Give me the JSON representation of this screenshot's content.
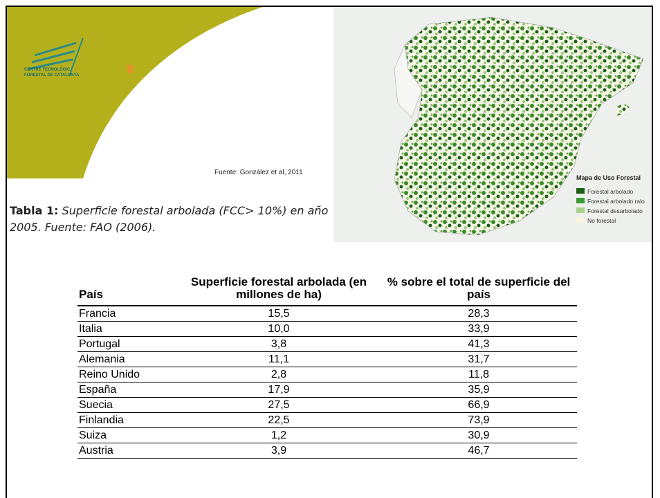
{
  "logo": {
    "line1": "CENTRE TECNOLÒGIC",
    "line2": "FORESTAL DE CATALUNYA"
  },
  "source_note": "Fuente: González et al, 2011",
  "map_legend": {
    "title": "Mapa de Uso Forestal",
    "items": [
      "Forestal arbolado",
      "Forestal arbolado ralo",
      "Forestal desarbolado",
      "No forestal"
    ]
  },
  "caption": {
    "label": "Tabla 1:",
    "text": "Superficie forestal arbolada (FCC> 10%) en año 2005. Fuente: FAO (2006)."
  },
  "table": {
    "headers": [
      "País",
      "Superficie forestal arbolada (en millones de ha)",
      "% sobre el total de superficie del país"
    ],
    "rows": [
      [
        "Francia",
        "15,5",
        "28,3"
      ],
      [
        "Italia",
        "10,0",
        "33,9"
      ],
      [
        "Portugal",
        "3,8",
        "41,3"
      ],
      [
        "Alemania",
        "11,1",
        "31,7"
      ],
      [
        "Reino Unido",
        "2,8",
        "11,8"
      ],
      [
        "España",
        "17,9",
        "35,9"
      ],
      [
        "Suecia",
        "27,5",
        "66,9"
      ],
      [
        "Finlandia",
        "22,5",
        "73,9"
      ],
      [
        "Suiza",
        "1,2",
        "30,9"
      ],
      [
        "Austria",
        "3,9",
        "46,7"
      ]
    ]
  }
}
